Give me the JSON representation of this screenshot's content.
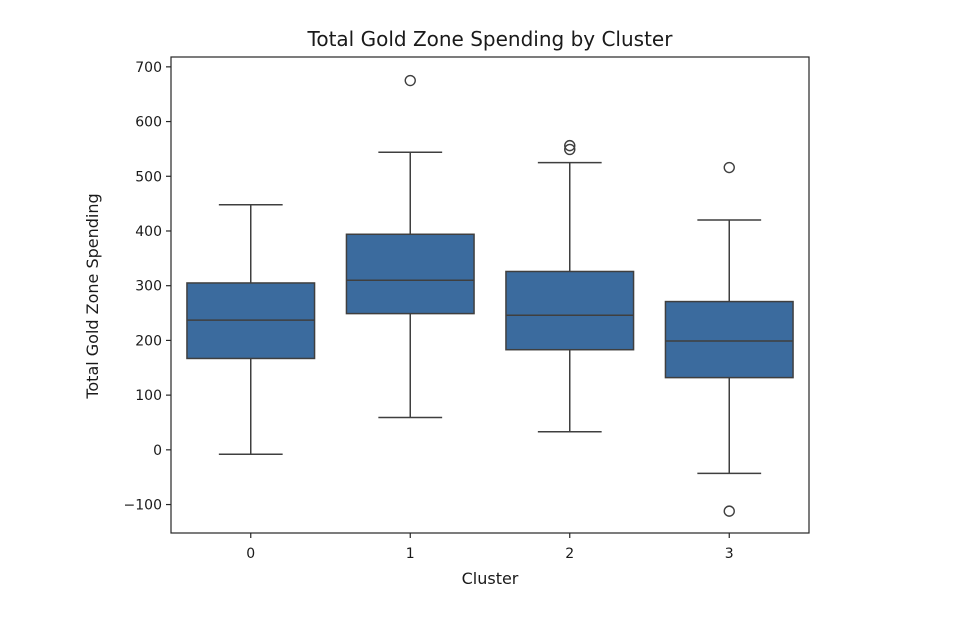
{
  "chart_data": {
    "type": "box",
    "title": "Total Gold Zone Spending by Cluster",
    "xlabel": "Cluster",
    "ylabel": "Total Gold Zone Spending",
    "categories": [
      "0",
      "1",
      "2",
      "3"
    ],
    "y_ticks": [
      -100,
      0,
      100,
      200,
      300,
      400,
      500,
      600,
      700
    ],
    "y_tick_labels": [
      "−100",
      "0",
      "100",
      "200",
      "300",
      "400",
      "500",
      "600",
      "700"
    ],
    "ylim": [
      -152,
      718
    ],
    "box_color": "#3b6b9e",
    "line_color": "#3f3f3f",
    "grid": false,
    "boxes": [
      {
        "category": "0",
        "whisker_low": -8,
        "q1": 167,
        "median": 237,
        "q3": 305,
        "whisker_high": 448,
        "outliers": []
      },
      {
        "category": "1",
        "whisker_low": 59,
        "q1": 249,
        "median": 310,
        "q3": 394,
        "whisker_high": 544,
        "outliers": [
          675
        ]
      },
      {
        "category": "2",
        "whisker_low": 33,
        "q1": 183,
        "median": 246,
        "q3": 326,
        "whisker_high": 525,
        "outliers": [
          549,
          556
        ]
      },
      {
        "category": "3",
        "whisker_low": -43,
        "q1": 132,
        "median": 199,
        "q3": 271,
        "whisker_high": 420,
        "outliers": [
          516,
          -112
        ]
      }
    ]
  }
}
